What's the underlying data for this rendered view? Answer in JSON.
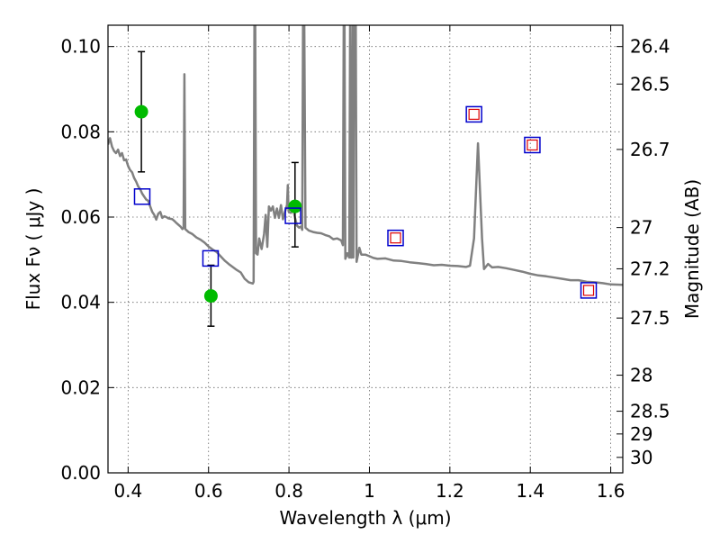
{
  "chart_data": {
    "type": "scatter",
    "title": "",
    "xlabel": "Wavelength  λ (μm)",
    "ylabel": "Flux  Fν  ( μJy )",
    "ylabel_right": "Magnitude (AB)",
    "xlim": [
      0.35,
      1.63
    ],
    "ylim": [
      0.0,
      0.105
    ],
    "grid": true,
    "x_ticks": [
      {
        "value": 0.4,
        "label": "0.4"
      },
      {
        "value": 0.6,
        "label": "0.6"
      },
      {
        "value": 0.8,
        "label": "0.8"
      },
      {
        "value": 1.0,
        "label": "1"
      },
      {
        "value": 1.2,
        "label": "1.2"
      },
      {
        "value": 1.4,
        "label": "1.4"
      },
      {
        "value": 1.6,
        "label": "1.6"
      }
    ],
    "y_ticks": [
      {
        "value": 0.0,
        "label": "0.00"
      },
      {
        "value": 0.02,
        "label": "0.02"
      },
      {
        "value": 0.04,
        "label": "0.04"
      },
      {
        "value": 0.06,
        "label": "0.06"
      },
      {
        "value": 0.08,
        "label": "0.08"
      },
      {
        "value": 0.1,
        "label": "0.10"
      }
    ],
    "right_ticks": [
      {
        "mag": 26.4,
        "label": "26.4"
      },
      {
        "mag": 26.5,
        "label": "26.5"
      },
      {
        "mag": 26.7,
        "label": "26.7"
      },
      {
        "mag": 27.0,
        "label": "27"
      },
      {
        "mag": 27.2,
        "label": "27.2"
      },
      {
        "mag": 27.5,
        "label": "27.5"
      },
      {
        "mag": 28.0,
        "label": "28"
      },
      {
        "mag": 28.5,
        "label": "28.5"
      },
      {
        "mag": 29.0,
        "label": "29"
      },
      {
        "mag": 30.0,
        "label": "30"
      }
    ],
    "colors": {
      "spectrum": "#808080",
      "observed": "#00bb00",
      "model_box": "#0000cc",
      "model_inner": "#dd0000",
      "errorbar": "#000000",
      "grid": "#666666"
    },
    "spectrum": [
      [
        0.35,
        0.077
      ],
      [
        0.355,
        0.0785
      ],
      [
        0.36,
        0.0765
      ],
      [
        0.365,
        0.0755
      ],
      [
        0.37,
        0.075
      ],
      [
        0.375,
        0.0758
      ],
      [
        0.38,
        0.0743
      ],
      [
        0.385,
        0.075
      ],
      [
        0.39,
        0.0733
      ],
      [
        0.395,
        0.0735
      ],
      [
        0.4,
        0.072
      ],
      [
        0.405,
        0.071
      ],
      [
        0.41,
        0.0705
      ],
      [
        0.415,
        0.0692
      ],
      [
        0.42,
        0.0683
      ],
      [
        0.425,
        0.0672
      ],
      [
        0.43,
        0.0665
      ],
      [
        0.435,
        0.0655
      ],
      [
        0.44,
        0.0648
      ],
      [
        0.445,
        0.0641
      ],
      [
        0.45,
        0.0638
      ],
      [
        0.455,
        0.0625
      ],
      [
        0.46,
        0.0612
      ],
      [
        0.465,
        0.0605
      ],
      [
        0.47,
        0.0594
      ],
      [
        0.475,
        0.0608
      ],
      [
        0.48,
        0.0612
      ],
      [
        0.485,
        0.0598
      ],
      [
        0.49,
        0.0602
      ],
      [
        0.495,
        0.06
      ],
      [
        0.5,
        0.0597
      ],
      [
        0.505,
        0.0596
      ],
      [
        0.51,
        0.0595
      ],
      [
        0.515,
        0.0591
      ],
      [
        0.52,
        0.0586
      ],
      [
        0.525,
        0.0582
      ],
      [
        0.53,
        0.0578
      ],
      [
        0.535,
        0.0572
      ],
      [
        0.538,
        0.0575
      ],
      [
        0.54,
        0.0935
      ],
      [
        0.542,
        0.0572
      ],
      [
        0.55,
        0.0565
      ],
      [
        0.56,
        0.056
      ],
      [
        0.57,
        0.0552
      ],
      [
        0.58,
        0.0547
      ],
      [
        0.59,
        0.054
      ],
      [
        0.6,
        0.0531
      ],
      [
        0.61,
        0.0524
      ],
      [
        0.62,
        0.0518
      ],
      [
        0.63,
        0.0508
      ],
      [
        0.64,
        0.0498
      ],
      [
        0.65,
        0.049
      ],
      [
        0.66,
        0.0483
      ],
      [
        0.67,
        0.0476
      ],
      [
        0.68,
        0.047
      ],
      [
        0.69,
        0.0455
      ],
      [
        0.7,
        0.0447
      ],
      [
        0.71,
        0.0444
      ],
      [
        0.712,
        0.0448
      ],
      [
        0.714,
        0.105
      ],
      [
        0.716,
        0.105
      ],
      [
        0.718,
        0.0515
      ],
      [
        0.722,
        0.0512
      ],
      [
        0.726,
        0.055
      ],
      [
        0.732,
        0.0525
      ],
      [
        0.738,
        0.056
      ],
      [
        0.742,
        0.0605
      ],
      [
        0.746,
        0.053
      ],
      [
        0.75,
        0.0625
      ],
      [
        0.755,
        0.0615
      ],
      [
        0.76,
        0.0625
      ],
      [
        0.765,
        0.0598
      ],
      [
        0.77,
        0.062
      ],
      [
        0.775,
        0.0598
      ],
      [
        0.78,
        0.0628
      ],
      [
        0.785,
        0.0595
      ],
      [
        0.79,
        0.0612
      ],
      [
        0.795,
        0.0628
      ],
      [
        0.797,
        0.0675
      ],
      [
        0.799,
        0.0615
      ],
      [
        0.8,
        0.0611
      ],
      [
        0.805,
        0.061
      ],
      [
        0.81,
        0.062
      ],
      [
        0.815,
        0.0598
      ],
      [
        0.82,
        0.058
      ],
      [
        0.825,
        0.0575
      ],
      [
        0.83,
        0.0578
      ],
      [
        0.833,
        0.057
      ],
      [
        0.835,
        0.105
      ],
      [
        0.838,
        0.105
      ],
      [
        0.841,
        0.0575
      ],
      [
        0.85,
        0.0568
      ],
      [
        0.86,
        0.0565
      ],
      [
        0.87,
        0.0563
      ],
      [
        0.88,
        0.0562
      ],
      [
        0.89,
        0.0558
      ],
      [
        0.9,
        0.0555
      ],
      [
        0.91,
        0.0548
      ],
      [
        0.92,
        0.055
      ],
      [
        0.93,
        0.0545
      ],
      [
        0.934,
        0.0534
      ],
      [
        0.936,
        0.105
      ],
      [
        0.938,
        0.105
      ],
      [
        0.94,
        0.0502
      ],
      [
        0.945,
        0.0515
      ],
      [
        0.95,
        0.0505
      ],
      [
        0.952,
        0.105
      ],
      [
        0.954,
        0.0505
      ],
      [
        0.956,
        0.0505
      ],
      [
        0.958,
        0.105
      ],
      [
        0.96,
        0.0505
      ],
      [
        0.962,
        0.105
      ],
      [
        0.966,
        0.105
      ],
      [
        0.968,
        0.0495
      ],
      [
        0.975,
        0.0528
      ],
      [
        0.98,
        0.0512
      ],
      [
        0.99,
        0.0512
      ],
      [
        1.0,
        0.0508
      ],
      [
        1.01,
        0.0504
      ],
      [
        1.02,
        0.0502
      ],
      [
        1.04,
        0.0503
      ],
      [
        1.06,
        0.0498
      ],
      [
        1.08,
        0.0497
      ],
      [
        1.1,
        0.0494
      ],
      [
        1.12,
        0.0492
      ],
      [
        1.14,
        0.049
      ],
      [
        1.16,
        0.0487
      ],
      [
        1.18,
        0.0488
      ],
      [
        1.2,
        0.0486
      ],
      [
        1.22,
        0.0485
      ],
      [
        1.24,
        0.0483
      ],
      [
        1.25,
        0.0486
      ],
      [
        1.26,
        0.055
      ],
      [
        1.27,
        0.0773
      ],
      [
        1.28,
        0.055
      ],
      [
        1.285,
        0.0478
      ],
      [
        1.295,
        0.049
      ],
      [
        1.305,
        0.0482
      ],
      [
        1.32,
        0.0483
      ],
      [
        1.34,
        0.048
      ],
      [
        1.36,
        0.0476
      ],
      [
        1.38,
        0.0472
      ],
      [
        1.4,
        0.0467
      ],
      [
        1.42,
        0.0463
      ],
      [
        1.44,
        0.0461
      ],
      [
        1.46,
        0.0458
      ],
      [
        1.48,
        0.0455
      ],
      [
        1.5,
        0.0452
      ],
      [
        1.52,
        0.0452
      ],
      [
        1.54,
        0.0448
      ],
      [
        1.56,
        0.0447
      ],
      [
        1.58,
        0.0445
      ],
      [
        1.6,
        0.0442
      ],
      [
        1.63,
        0.0441
      ]
    ],
    "observed_points": [
      {
        "x": 0.433,
        "y": 0.0847,
        "ylow": 0.0706,
        "yhigh": 0.0988
      },
      {
        "x": 0.606,
        "y": 0.0415,
        "ylow": 0.0344,
        "yhigh": 0.0487
      },
      {
        "x": 0.815,
        "y": 0.0625,
        "ylow": 0.053,
        "yhigh": 0.0728
      }
    ],
    "model_points": [
      {
        "x": 0.435,
        "y": 0.0648,
        "inner": false
      },
      {
        "x": 0.605,
        "y": 0.0503,
        "inner": false
      },
      {
        "x": 0.81,
        "y": 0.0603,
        "inner": false
      },
      {
        "x": 1.065,
        "y": 0.0551,
        "inner": true
      },
      {
        "x": 1.26,
        "y": 0.0841,
        "inner": true
      },
      {
        "x": 1.405,
        "y": 0.0769,
        "inner": true
      },
      {
        "x": 1.545,
        "y": 0.0428,
        "inner": true
      }
    ]
  }
}
